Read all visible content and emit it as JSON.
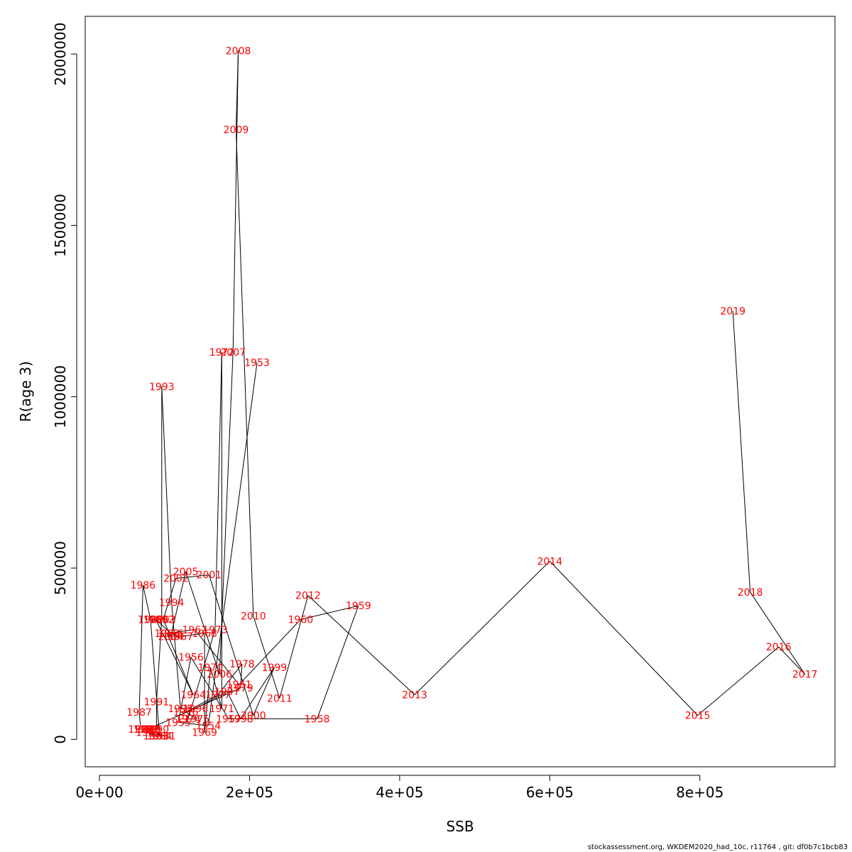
{
  "footer": "stockassessment.org, WKDEM2020_had_10c, r11764 , git: df0b7c1bcb83",
  "chart_data": {
    "type": "line",
    "xlabel": "SSB",
    "ylabel": "R(age 3)",
    "xlim": [
      -19000,
      980000
    ],
    "ylim": [
      -80000,
      2110000
    ],
    "x_ticks": [
      0,
      200000,
      400000,
      600000,
      800000
    ],
    "x_tick_labels": [
      "0e+00",
      "2e+05",
      "4e+05",
      "6e+05",
      "8e+05"
    ],
    "y_ticks": [
      0,
      500000,
      1000000,
      1500000,
      2000000
    ],
    "y_tick_labels": [
      "0",
      "500000",
      "1000000",
      "1500000",
      "2000000"
    ],
    "grid": false,
    "label_color": "#ff0000",
    "line_color": "#000000",
    "points": [
      {
        "year": "1953",
        "x": 210000,
        "y": 1100000
      },
      {
        "year": "1954",
        "x": 145000,
        "y": 40000
      },
      {
        "year": "1955",
        "x": 105000,
        "y": 50000
      },
      {
        "year": "1956",
        "x": 122000,
        "y": 240000
      },
      {
        "year": "1957",
        "x": 172000,
        "y": 60000
      },
      {
        "year": "1958",
        "x": 290000,
        "y": 60000
      },
      {
        "year": "1959",
        "x": 345000,
        "y": 390000
      },
      {
        "year": "1960",
        "x": 268000,
        "y": 350000
      },
      {
        "year": "1961",
        "x": 186000,
        "y": 160000
      },
      {
        "year": "1962",
        "x": 127000,
        "y": 320000
      },
      {
        "year": "1963",
        "x": 90000,
        "y": 310000
      },
      {
        "year": "1964",
        "x": 125000,
        "y": 130000
      },
      {
        "year": "1965",
        "x": 75000,
        "y": 350000
      },
      {
        "year": "1966",
        "x": 95000,
        "y": 310000
      },
      {
        "year": "1967",
        "x": 108000,
        "y": 300000
      },
      {
        "year": "1968",
        "x": 140000,
        "y": 310000
      },
      {
        "year": "1969",
        "x": 140000,
        "y": 20000
      },
      {
        "year": "1970",
        "x": 148000,
        "y": 210000
      },
      {
        "year": "1971",
        "x": 163000,
        "y": 90000
      },
      {
        "year": "1972",
        "x": 163000,
        "y": 1130000
      },
      {
        "year": "1973",
        "x": 154000,
        "y": 320000
      },
      {
        "year": "1974",
        "x": 118000,
        "y": 60000
      },
      {
        "year": "1975",
        "x": 130000,
        "y": 60000
      },
      {
        "year": "1976",
        "x": 115000,
        "y": 80000
      },
      {
        "year": "1977",
        "x": 158000,
        "y": 130000
      },
      {
        "year": "1978",
        "x": 190000,
        "y": 220000
      },
      {
        "year": "1979",
        "x": 188000,
        "y": 150000
      },
      {
        "year": "1980",
        "x": 65000,
        "y": 30000
      },
      {
        "year": "1981",
        "x": 85000,
        "y": 10000
      },
      {
        "year": "1982",
        "x": 65000,
        "y": 20000
      },
      {
        "year": "1983",
        "x": 75000,
        "y": 10000
      },
      {
        "year": "1984",
        "x": 80000,
        "y": 10000
      },
      {
        "year": "1985",
        "x": 68000,
        "y": 350000
      },
      {
        "year": "1986",
        "x": 58000,
        "y": 450000
      },
      {
        "year": "1987",
        "x": 53000,
        "y": 80000
      },
      {
        "year": "1988",
        "x": 55000,
        "y": 30000
      },
      {
        "year": "1989",
        "x": 62000,
        "y": 30000
      },
      {
        "year": "1990",
        "x": 76000,
        "y": 30000
      },
      {
        "year": "1991",
        "x": 76000,
        "y": 110000
      },
      {
        "year": "1992",
        "x": 83000,
        "y": 350000
      },
      {
        "year": "1993",
        "x": 83000,
        "y": 1030000
      },
      {
        "year": "1994",
        "x": 96000,
        "y": 400000
      },
      {
        "year": "1995",
        "x": 108000,
        "y": 90000
      },
      {
        "year": "1996",
        "x": 128000,
        "y": 90000
      },
      {
        "year": "1997",
        "x": 170000,
        "y": 140000
      },
      {
        "year": "1998",
        "x": 188000,
        "y": 60000
      },
      {
        "year": "1999",
        "x": 233000,
        "y": 210000
      },
      {
        "year": "2000",
        "x": 205000,
        "y": 70000
      },
      {
        "year": "2001",
        "x": 146000,
        "y": 480000
      },
      {
        "year": "2002",
        "x": 102000,
        "y": 470000
      },
      {
        "year": "2003",
        "x": 85000,
        "y": 350000
      },
      {
        "year": "2004",
        "x": 95000,
        "y": 300000
      },
      {
        "year": "2005",
        "x": 115000,
        "y": 490000
      },
      {
        "year": "2006",
        "x": 160000,
        "y": 190000
      },
      {
        "year": "2007",
        "x": 178000,
        "y": 1130000
      },
      {
        "year": "2008",
        "x": 185000,
        "y": 2010000
      },
      {
        "year": "2009",
        "x": 182000,
        "y": 1780000
      },
      {
        "year": "2010",
        "x": 205000,
        "y": 360000
      },
      {
        "year": "2011",
        "x": 240000,
        "y": 120000
      },
      {
        "year": "2012",
        "x": 278000,
        "y": 420000
      },
      {
        "year": "2013",
        "x": 420000,
        "y": 130000
      },
      {
        "year": "2014",
        "x": 600000,
        "y": 520000
      },
      {
        "year": "2015",
        "x": 797000,
        "y": 70000
      },
      {
        "year": "2016",
        "x": 905000,
        "y": 270000
      },
      {
        "year": "2017",
        "x": 940000,
        "y": 190000
      },
      {
        "year": "2018",
        "x": 867000,
        "y": 430000
      },
      {
        "year": "2019",
        "x": 844000,
        "y": 1250000
      }
    ]
  }
}
